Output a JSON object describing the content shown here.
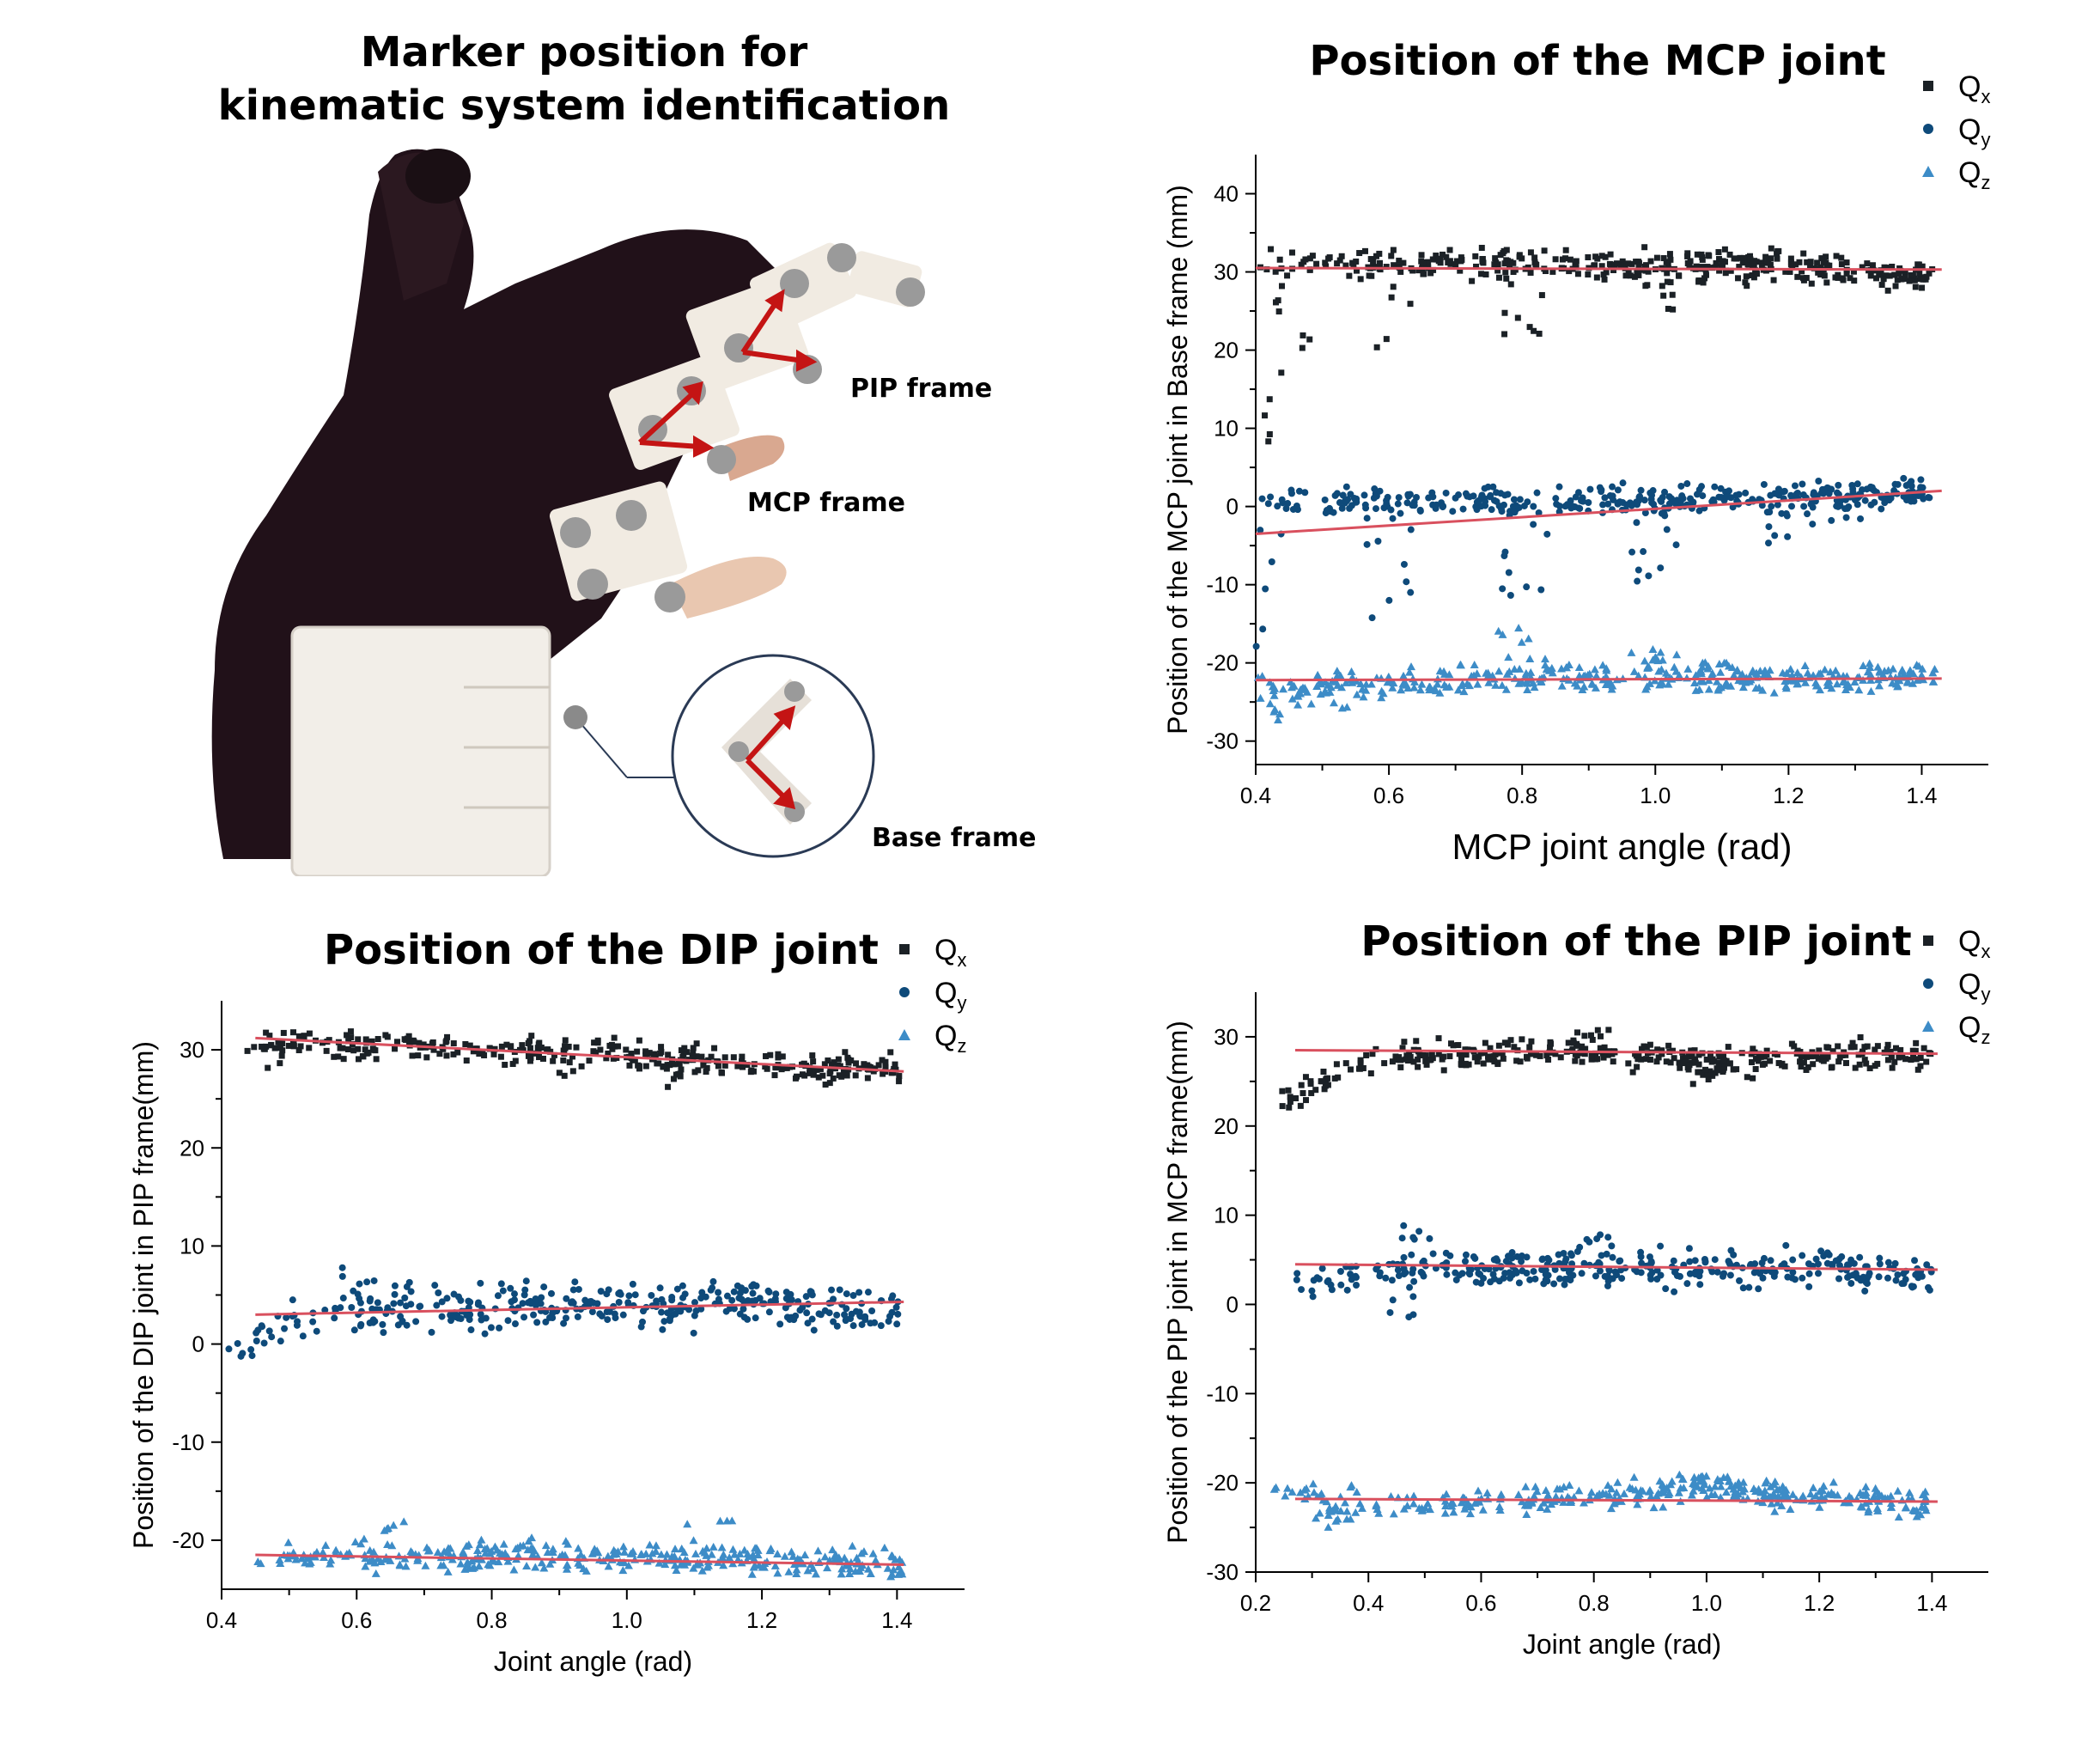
{
  "photo": {
    "title_line1": "Marker position for",
    "title_line2": "kinematic system identification",
    "labels": {
      "pip": "PIP frame",
      "mcp": "MCP frame",
      "base": "Base frame"
    }
  },
  "colors": {
    "qx": "#1b2126",
    "qy": "#0e4a7a",
    "qz": "#3d8cc7",
    "fit": "#d9505e"
  },
  "icons": {
    "qx": "square-marker-icon",
    "qy": "circle-marker-icon",
    "qz": "triangle-marker-icon"
  },
  "chart_data": [
    {
      "id": "mcp",
      "type": "scatter",
      "title": "Position of the MCP joint",
      "xlabel": "MCP joint angle (rad)",
      "ylabel": "Position of the MCP joint in Base frame (mm)",
      "xlim": [
        0.4,
        1.5
      ],
      "ylim": [
        -33,
        45
      ],
      "xticks": [
        "0.4",
        "0.6",
        "0.8",
        "1.0",
        "1.2",
        "1.4"
      ],
      "yticks": [
        "-30",
        "-20",
        "-10",
        "0",
        "10",
        "20",
        "30",
        "40"
      ],
      "legend": "top-right",
      "series": [
        {
          "name": "Q",
          "sub": "x",
          "marker": "square",
          "band": [
            [
              0.4,
              31.5
            ],
            [
              0.6,
              31
            ],
            [
              0.8,
              31
            ],
            [
              1.0,
              31
            ],
            [
              1.2,
              31
            ],
            [
              1.42,
              29
            ]
          ],
          "spread": 1.8,
          "count": 380,
          "scatter_range": [
            [
              0.4,
              15
            ],
            [
              0.45,
              5
            ],
            [
              0.6,
              20
            ],
            [
              0.8,
              22
            ],
            [
              1.0,
              25
            ],
            [
              1.1,
              28
            ]
          ],
          "fit": [
            [
              0.4,
              30.5
            ],
            [
              1.43,
              30.3
            ]
          ]
        },
        {
          "name": "Q",
          "sub": "y",
          "marker": "circle",
          "band": [
            [
              0.4,
              0.5
            ],
            [
              0.8,
              0.5
            ],
            [
              1.2,
              1
            ],
            [
              1.42,
              2
            ]
          ],
          "spread": 1.8,
          "count": 360,
          "scatter_range": [
            [
              0.4,
              -20
            ],
            [
              0.6,
              -15
            ],
            [
              0.8,
              -12
            ],
            [
              1.0,
              -10
            ],
            [
              1.2,
              -5
            ],
            [
              1.3,
              -2
            ]
          ],
          "fit": [
            [
              0.4,
              -3.5
            ],
            [
              1.43,
              2
            ]
          ]
        },
        {
          "name": "Q",
          "sub": "z",
          "marker": "triangle",
          "band": [
            [
              0.4,
              -23
            ],
            [
              0.8,
              -22
            ],
            [
              1.2,
              -22
            ],
            [
              1.42,
              -21.5
            ]
          ],
          "spread": 1.8,
          "count": 360,
          "scatter_range": [
            [
              0.4,
              -30
            ],
            [
              0.5,
              -26
            ],
            [
              0.8,
              -15
            ],
            [
              1.0,
              -18
            ],
            [
              1.1,
              -20
            ]
          ],
          "fit": [
            [
              0.4,
              -22.2
            ],
            [
              1.43,
              -22
            ]
          ]
        }
      ]
    },
    {
      "id": "dip",
      "type": "scatter",
      "title": "Position of the DIP joint",
      "xlabel": "Joint angle (rad)",
      "ylabel": "Position of the DIP joint in PIP frame(mm)",
      "xlim": [
        0.4,
        1.5
      ],
      "ylim": [
        -25,
        35
      ],
      "xticks": [
        "0.4",
        "0.6",
        "0.8",
        "1.0",
        "1.2",
        "1.4"
      ],
      "yticks": [
        "-20",
        "-10",
        "0",
        "10",
        "20",
        "30"
      ],
      "legend": "top-right",
      "series": [
        {
          "name": "Q",
          "sub": "x",
          "marker": "square",
          "band": [
            [
              0.45,
              31
            ],
            [
              0.8,
              30
            ],
            [
              1.0,
              29.5
            ],
            [
              1.2,
              28.5
            ],
            [
              1.41,
              28
            ]
          ],
          "spread": 1.4,
          "count": 320,
          "scatter_range": [
            [
              0.45,
              28
            ],
            [
              0.6,
              29
            ],
            [
              0.9,
              27
            ],
            [
              1.1,
              26
            ]
          ],
          "fit": [
            [
              0.45,
              31.2
            ],
            [
              1.41,
              27.8
            ]
          ]
        },
        {
          "name": "Q",
          "sub": "y",
          "marker": "circle",
          "band": [
            [
              0.45,
              2
            ],
            [
              0.7,
              4
            ],
            [
              0.9,
              4
            ],
            [
              1.2,
              4
            ],
            [
              1.41,
              3.5
            ]
          ],
          "spread": 2.2,
          "count": 320,
          "scatter_range": [
            [
              0.45,
              -2
            ],
            [
              0.6,
              8
            ],
            [
              0.75,
              1
            ],
            [
              1.2,
              6
            ]
          ],
          "fit": [
            [
              0.45,
              3
            ],
            [
              1.41,
              4.3
            ]
          ]
        },
        {
          "name": "Q",
          "sub": "z",
          "marker": "triangle",
          "band": [
            [
              0.45,
              -22
            ],
            [
              0.8,
              -21.5
            ],
            [
              1.2,
              -22
            ],
            [
              1.41,
              -22.5
            ]
          ],
          "spread": 1.4,
          "count": 320,
          "scatter_range": [
            [
              0.65,
              -18
            ],
            [
              1.12,
              -18
            ],
            [
              0.8,
              -23
            ]
          ],
          "fit": [
            [
              0.45,
              -21.5
            ],
            [
              1.41,
              -22.5
            ]
          ]
        }
      ]
    },
    {
      "id": "pip",
      "type": "scatter",
      "title": "Position of the PIP joint",
      "xlabel": "Joint angle (rad)",
      "ylabel": "Position of the PIP joint in MCP frame(mm)",
      "xlim": [
        0.2,
        1.5
      ],
      "ylim": [
        -30,
        35
      ],
      "xticks": [
        "0.2",
        "0.4",
        "0.6",
        "0.8",
        "1.0",
        "1.2",
        "1.4"
      ],
      "yticks": [
        "-30",
        "-20",
        "-10",
        "0",
        "10",
        "20",
        "30"
      ],
      "legend": "top-right",
      "series": [
        {
          "name": "Q",
          "sub": "x",
          "marker": "square",
          "band": [
            [
              0.27,
              24
            ],
            [
              0.4,
              27
            ],
            [
              0.6,
              28
            ],
            [
              0.8,
              28.5
            ],
            [
              1.0,
              27
            ],
            [
              1.2,
              28
            ],
            [
              1.4,
              28
            ]
          ],
          "spread": 1.6,
          "count": 340,
          "scatter_range": [
            [
              0.27,
              22
            ],
            [
              0.5,
              30
            ],
            [
              0.8,
              31
            ],
            [
              1.0,
              24.5
            ]
          ],
          "fit": [
            [
              0.27,
              28.5
            ],
            [
              1.41,
              28.1
            ]
          ]
        },
        {
          "name": "Q",
          "sub": "y",
          "marker": "circle",
          "band": [
            [
              0.27,
              2
            ],
            [
              0.5,
              4
            ],
            [
              0.7,
              4
            ],
            [
              1.0,
              4
            ],
            [
              1.2,
              4
            ],
            [
              1.4,
              3
            ]
          ],
          "spread": 2.0,
          "count": 320,
          "scatter_range": [
            [
              0.5,
              9
            ],
            [
              0.8,
              8
            ],
            [
              0.45,
              -2
            ],
            [
              1.2,
              6
            ]
          ],
          "fit": [
            [
              0.27,
              4.5
            ],
            [
              1.41,
              3.9
            ]
          ]
        },
        {
          "name": "Q",
          "sub": "z",
          "marker": "triangle",
          "band": [
            [
              0.27,
              -22
            ],
            [
              0.5,
              -22.5
            ],
            [
              0.8,
              -21.5
            ],
            [
              1.0,
              -20.5
            ],
            [
              1.2,
              -21.5
            ],
            [
              1.4,
              -22.5
            ]
          ],
          "spread": 1.5,
          "count": 320,
          "scatter_range": [
            [
              0.27,
              -20.5
            ],
            [
              1.03,
              -19
            ],
            [
              0.35,
              -25
            ]
          ],
          "fit": [
            [
              0.27,
              -21.8
            ],
            [
              1.41,
              -22.1
            ]
          ]
        }
      ]
    }
  ]
}
